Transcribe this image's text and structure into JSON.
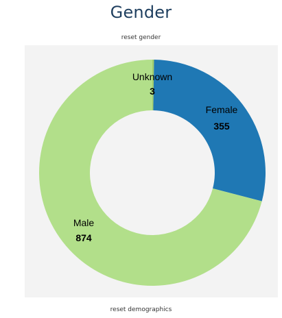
{
  "header": {
    "title": "Gender",
    "reset_gender": "reset gender"
  },
  "footer": {
    "reset_demographics": "reset demographics"
  },
  "chart_data": {
    "type": "pie",
    "donut": true,
    "title": "Gender",
    "categories": [
      "Unknown",
      "Female",
      "Male"
    ],
    "values": [
      3,
      355,
      874
    ],
    "labels": [
      {
        "name": "Unknown",
        "value": "3"
      },
      {
        "name": "Female",
        "value": "355"
      },
      {
        "name": "Male",
        "value": "874"
      }
    ],
    "colors": {
      "Unknown": "#a0cc6c",
      "Female": "#1f78b4",
      "Male": "#b2df8a"
    },
    "legend": "none"
  }
}
